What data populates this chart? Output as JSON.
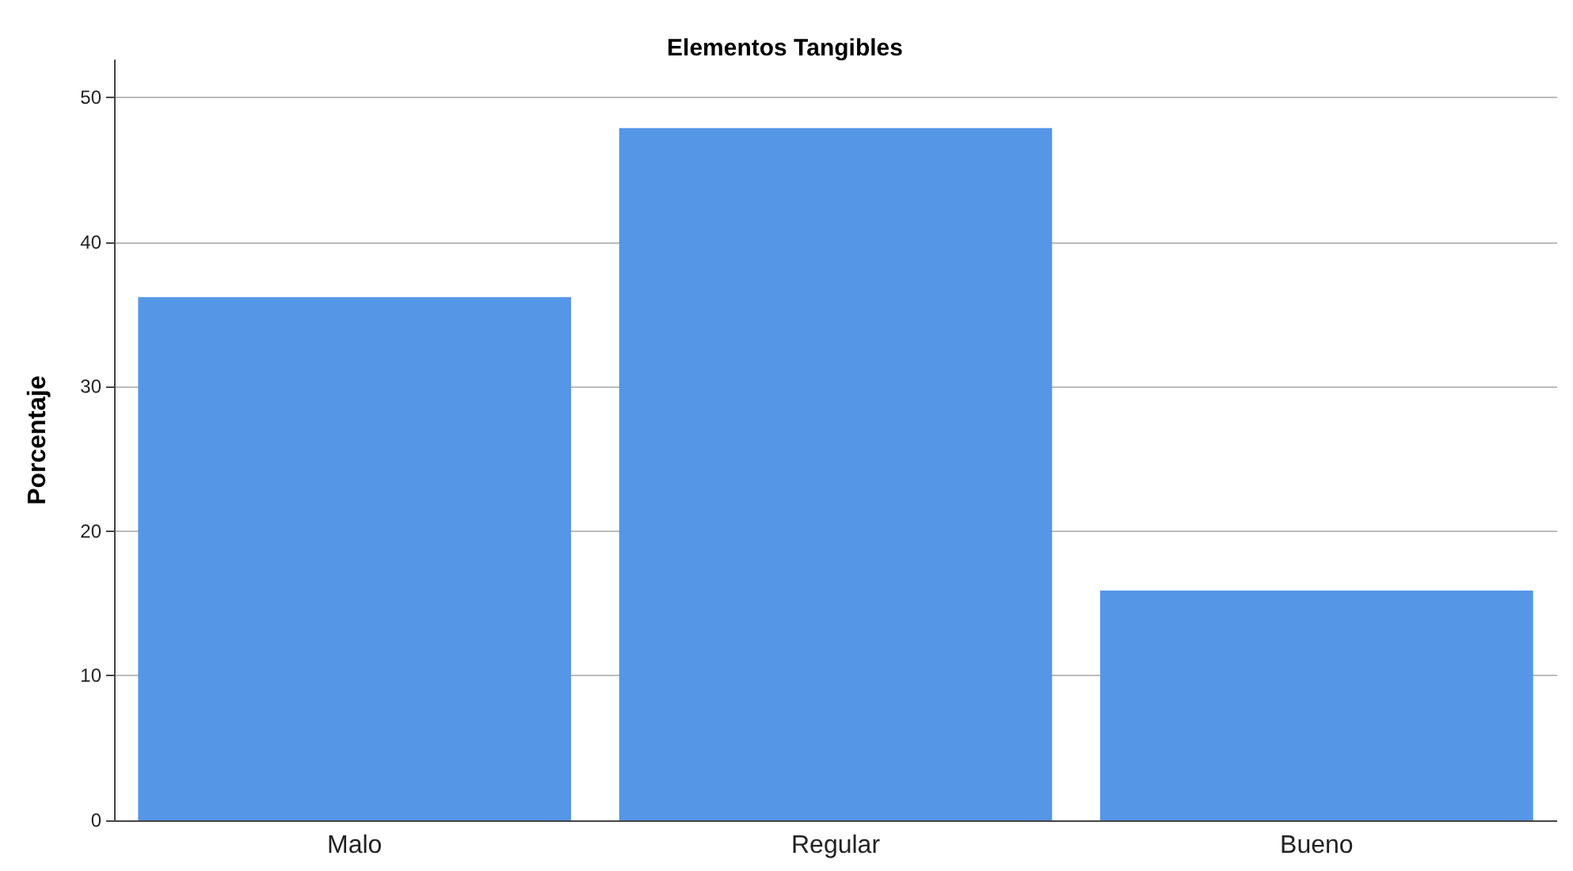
{
  "chart_data": {
    "type": "bar",
    "title": "Elementos Tangibles",
    "ylabel": "Porcentaje",
    "categories": [
      "Malo",
      "Regular",
      "Bueno"
    ],
    "values": [
      36.2,
      47.9,
      15.9
    ],
    "color": "#5596e6",
    "ylim": [
      0,
      52.6
    ],
    "yticks": [
      0,
      10,
      20,
      30,
      40,
      50
    ],
    "grid": "y"
  }
}
